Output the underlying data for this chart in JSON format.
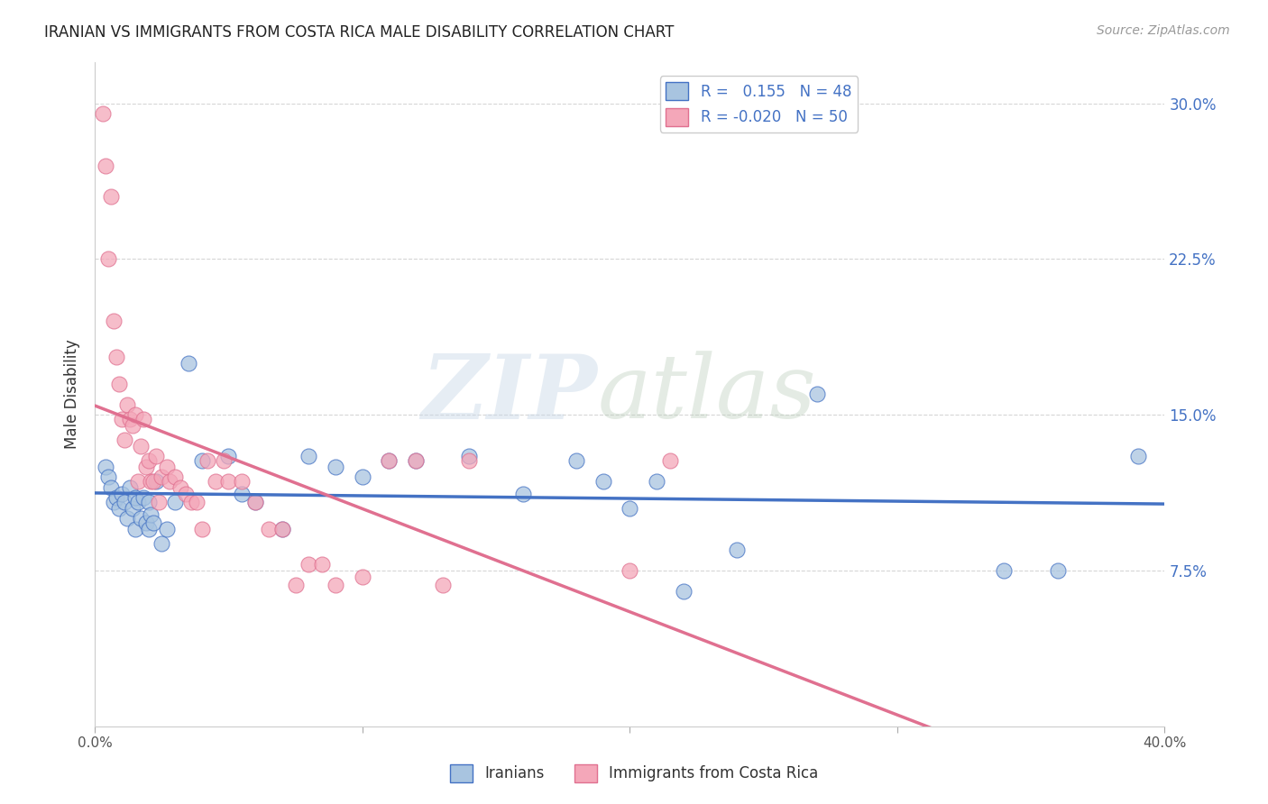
{
  "title": "IRANIAN VS IMMIGRANTS FROM COSTA RICA MALE DISABILITY CORRELATION CHART",
  "source": "Source: ZipAtlas.com",
  "ylabel": "Male Disability",
  "xlim": [
    0.0,
    0.4
  ],
  "ylim": [
    0.0,
    0.32
  ],
  "yticks": [
    0.075,
    0.15,
    0.225,
    0.3
  ],
  "ytick_labels": [
    "7.5%",
    "15.0%",
    "22.5%",
    "30.0%"
  ],
  "xticks": [
    0.0,
    0.1,
    0.2,
    0.3,
    0.4
  ],
  "xtick_labels": [
    "0.0%",
    "",
    "",
    "",
    "40.0%"
  ],
  "background_color": "#ffffff",
  "grid_color": "#cccccc",
  "iranians_color": "#a8c4e0",
  "costa_rica_color": "#f4a7b9",
  "iranians_line_color": "#4472c4",
  "costa_rica_line_color": "#e07090",
  "tick_label_color": "#4472c4",
  "legend_R1": "0.155",
  "legend_N1": "48",
  "legend_R2": "-0.020",
  "legend_N2": "50",
  "iranians_x": [
    0.004,
    0.005,
    0.006,
    0.007,
    0.008,
    0.009,
    0.01,
    0.011,
    0.012,
    0.013,
    0.014,
    0.015,
    0.015,
    0.016,
    0.017,
    0.018,
    0.019,
    0.02,
    0.02,
    0.021,
    0.022,
    0.023,
    0.025,
    0.027,
    0.03,
    0.035,
    0.04,
    0.05,
    0.055,
    0.06,
    0.07,
    0.08,
    0.09,
    0.1,
    0.11,
    0.12,
    0.14,
    0.16,
    0.18,
    0.19,
    0.2,
    0.21,
    0.22,
    0.24,
    0.27,
    0.34,
    0.36,
    0.39
  ],
  "iranians_y": [
    0.125,
    0.12,
    0.115,
    0.108,
    0.11,
    0.105,
    0.112,
    0.108,
    0.1,
    0.115,
    0.105,
    0.11,
    0.095,
    0.108,
    0.1,
    0.11,
    0.098,
    0.095,
    0.108,
    0.102,
    0.098,
    0.118,
    0.088,
    0.095,
    0.108,
    0.175,
    0.128,
    0.13,
    0.112,
    0.108,
    0.095,
    0.13,
    0.125,
    0.12,
    0.128,
    0.128,
    0.13,
    0.112,
    0.128,
    0.118,
    0.105,
    0.118,
    0.065,
    0.085,
    0.16,
    0.075,
    0.075,
    0.13
  ],
  "costa_rica_x": [
    0.003,
    0.004,
    0.005,
    0.006,
    0.007,
    0.008,
    0.009,
    0.01,
    0.011,
    0.012,
    0.013,
    0.014,
    0.015,
    0.016,
    0.017,
    0.018,
    0.019,
    0.02,
    0.021,
    0.022,
    0.023,
    0.024,
    0.025,
    0.027,
    0.028,
    0.03,
    0.032,
    0.034,
    0.036,
    0.038,
    0.04,
    0.042,
    0.045,
    0.048,
    0.05,
    0.055,
    0.06,
    0.065,
    0.07,
    0.075,
    0.08,
    0.085,
    0.09,
    0.1,
    0.11,
    0.12,
    0.13,
    0.14,
    0.2,
    0.215
  ],
  "costa_rica_y": [
    0.295,
    0.27,
    0.225,
    0.255,
    0.195,
    0.178,
    0.165,
    0.148,
    0.138,
    0.155,
    0.148,
    0.145,
    0.15,
    0.118,
    0.135,
    0.148,
    0.125,
    0.128,
    0.118,
    0.118,
    0.13,
    0.108,
    0.12,
    0.125,
    0.118,
    0.12,
    0.115,
    0.112,
    0.108,
    0.108,
    0.095,
    0.128,
    0.118,
    0.128,
    0.118,
    0.118,
    0.108,
    0.095,
    0.095,
    0.068,
    0.078,
    0.078,
    0.068,
    0.072,
    0.128,
    0.128,
    0.068,
    0.128,
    0.075,
    0.128
  ]
}
